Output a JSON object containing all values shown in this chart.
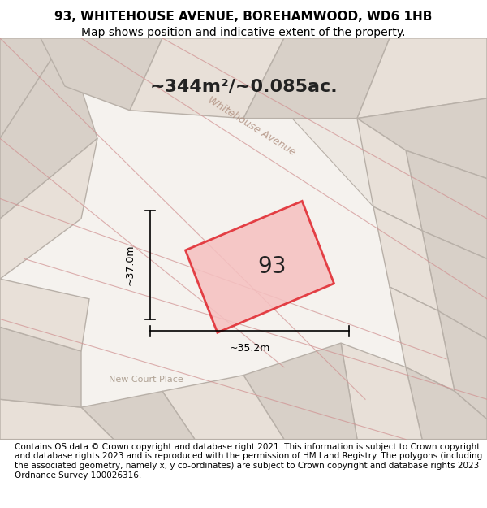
{
  "title_line1": "93, WHITEHOUSE AVENUE, BOREHAMWOOD, WD6 1HB",
  "title_line2": "Map shows position and indicative extent of the property.",
  "area_text": "~344m²/~0.085ac.",
  "label_37m": "~37.0m",
  "label_352m": "~35.2m",
  "property_label": "93",
  "street_label": "Whitehouse Avenue",
  "place_label": "New Court Place",
  "footer_text": "Contains OS data © Crown copyright and database right 2021. This information is subject to Crown copyright and database rights 2023 and is reproduced with the permission of HM Land Registry. The polygons (including the associated geometry, namely x, y co-ordinates) are subject to Crown copyright and database rights 2023 Ordnance Survey 100026316.",
  "bg_color": "#f0ece8",
  "map_bg": "#f5f2ee",
  "property_fill": "#f5c0c0",
  "property_edge": "#e0232a",
  "neighbor_fill": "#d8d0c8",
  "neighbor_edge": "#b8b0a8",
  "red_line_color": "#e03030",
  "gray_line_color": "#c0b8b0",
  "title_fontsize": 11,
  "subtitle_fontsize": 10,
  "footer_fontsize": 7.5
}
